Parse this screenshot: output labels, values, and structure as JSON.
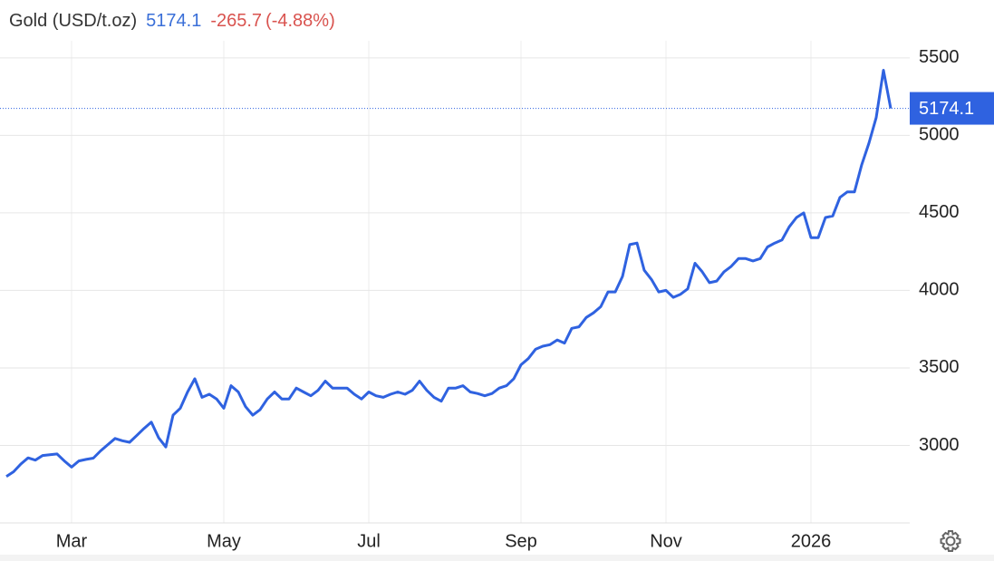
{
  "chart_data": {
    "type": "line",
    "title": "Gold (USD/t.oz)",
    "change": -265.7,
    "change_percent": "(-4.88%)",
    "categories": [
      null,
      null,
      null,
      null,
      null,
      null,
      null,
      null,
      null,
      "Mar",
      null,
      null,
      null,
      null,
      null,
      null,
      null,
      null,
      null,
      null,
      null,
      null,
      null,
      null,
      null,
      null,
      null,
      null,
      null,
      null,
      "May",
      null,
      null,
      null,
      null,
      null,
      null,
      null,
      null,
      null,
      null,
      null,
      null,
      null,
      null,
      null,
      null,
      null,
      null,
      null,
      "Jul",
      null,
      null,
      null,
      null,
      null,
      null,
      null,
      null,
      null,
      null,
      null,
      null,
      null,
      null,
      null,
      null,
      null,
      null,
      null,
      null,
      "Sep",
      null,
      null,
      null,
      null,
      null,
      null,
      null,
      null,
      null,
      null,
      null,
      null,
      null,
      null,
      null,
      null,
      null,
      null,
      null,
      "Nov",
      null,
      null,
      null,
      null,
      null,
      null,
      null,
      null,
      null,
      null,
      null,
      null,
      null,
      null,
      null,
      null,
      null,
      null,
      null,
      "2026",
      null,
      null,
      null,
      null,
      null,
      null,
      null,
      null,
      null,
      null,
      null
    ],
    "series": [
      {
        "color": "#2f62e0",
        "values": [
          2800,
          2830,
          2880,
          2920,
          2905,
          2935,
          2940,
          2945,
          2900,
          2860,
          2900,
          2910,
          2918,
          2965,
          3005,
          3045,
          3030,
          3020,
          3065,
          3110,
          3150,
          3050,
          2990,
          3195,
          3240,
          3345,
          3430,
          3310,
          3330,
          3300,
          3240,
          3385,
          3345,
          3250,
          3195,
          3230,
          3300,
          3345,
          3300,
          3300,
          3370,
          3345,
          3320,
          3355,
          3415,
          3370,
          3370,
          3370,
          3330,
          3300,
          3345,
          3320,
          3310,
          3330,
          3345,
          3330,
          3355,
          3415,
          3355,
          3310,
          3285,
          3370,
          3370,
          3385,
          3345,
          3335,
          3320,
          3335,
          3370,
          3385,
          3430,
          3520,
          3560,
          3620,
          3640,
          3650,
          3680,
          3660,
          3755,
          3765,
          3825,
          3855,
          3895,
          3990,
          3990,
          4090,
          4295,
          4305,
          4130,
          4070,
          3990,
          4000,
          3955,
          3975,
          4010,
          4175,
          4120,
          4050,
          4060,
          4120,
          4155,
          4205,
          4205,
          4190,
          4205,
          4280,
          4305,
          4325,
          4410,
          4470,
          4500,
          4340,
          4340,
          4470,
          4480,
          4600,
          4635,
          4635,
          4810,
          4950,
          5115,
          5420,
          5174.1
        ]
      }
    ],
    "ylim": [
      2500,
      5610
    ],
    "yticks": [
      3000,
      3500,
      4000,
      4500,
      5000,
      5500
    ],
    "grid": true
  }
}
